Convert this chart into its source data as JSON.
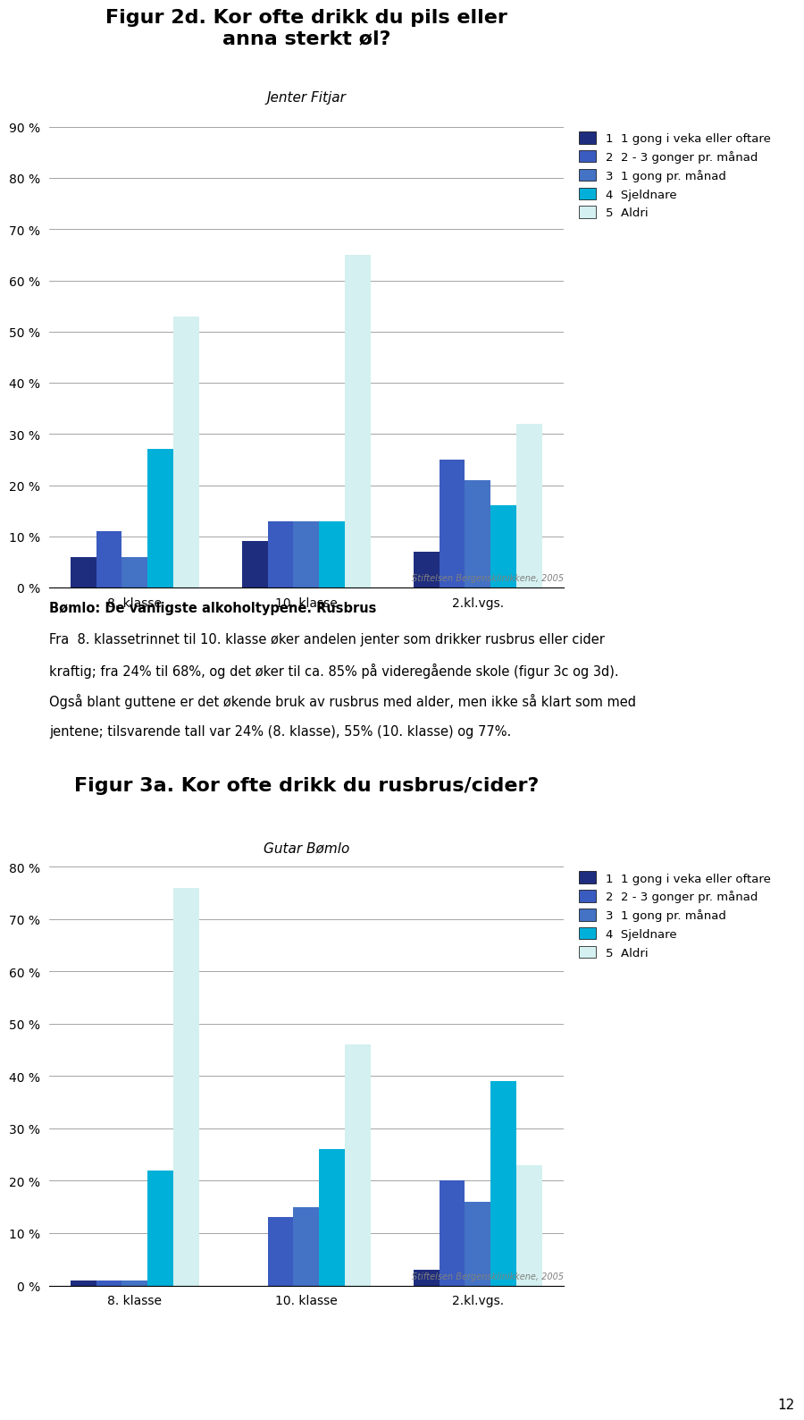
{
  "chart1": {
    "title": "Figur 2d. Kor ofte drikk du pils eller\nanna sterkt øl?",
    "subtitle": "Jenter Fitjar",
    "categories": [
      "8. klasse",
      "10. klasse",
      "2.kl.vgs."
    ],
    "series": [
      {
        "label": "1  1 gong i veka eller oftare",
        "values": [
          6,
          9,
          7
        ],
        "color": "#1f2d7e"
      },
      {
        "label": "2  2 - 3 gonger pr. månad",
        "values": [
          11,
          13,
          25
        ],
        "color": "#3a5bbf"
      },
      {
        "label": "3  1 gong pr. månad",
        "values": [
          6,
          13,
          21
        ],
        "color": "#4472c4"
      },
      {
        "label": "4  Sjeldnare",
        "values": [
          27,
          13,
          16
        ],
        "color": "#00b0d8"
      },
      {
        "label": "5  Aldri",
        "values": [
          53,
          65,
          32
        ],
        "color": "#d4f0f0"
      }
    ],
    "ylim": [
      0,
      90
    ],
    "yticks": [
      0,
      10,
      20,
      30,
      40,
      50,
      60,
      70,
      80,
      90
    ],
    "footer": "Stiftelsen Bergensklinikkene, 2005"
  },
  "chart2": {
    "title": "Figur 3a. Kor ofte drikk du rusbrus/cider?",
    "subtitle": "Gutar Bømlo",
    "categories": [
      "8. klasse",
      "10. klasse",
      "2.kl.vgs."
    ],
    "series": [
      {
        "label": "1  1 gong i veka eller oftare",
        "values": [
          1,
          0,
          3
        ],
        "color": "#1f2d7e"
      },
      {
        "label": "2  2 - 3 gonger pr. månad",
        "values": [
          1,
          13,
          20
        ],
        "color": "#3a5bbf"
      },
      {
        "label": "3  1 gong pr. månad",
        "values": [
          1,
          15,
          16
        ],
        "color": "#4472c4"
      },
      {
        "label": "4  Sjeldnare",
        "values": [
          22,
          26,
          39
        ],
        "color": "#00b0d8"
      },
      {
        "label": "5  Aldri",
        "values": [
          76,
          46,
          23
        ],
        "color": "#d4f0f0"
      }
    ],
    "ylim": [
      0,
      80
    ],
    "yticks": [
      0,
      10,
      20,
      30,
      40,
      50,
      60,
      70,
      80
    ],
    "footer": "Stiftelsen Bergensklinikkene, 2005"
  },
  "body_text": [
    "Bømlo: De vanligste alkoholtypene. Rusbrus",
    "Fra  8. klassetrinnet til 10. klasse øker andelen jenter som drikker rusbrus eller cider",
    "kraftig; fra 24% til 68%, og det øker til ca. 85% på videregående skole (figur 3c og 3d).",
    "Også blant guttene er det økende bruk av rusbrus med alder, men ikke så klart som med",
    "jentene; tilsvarende tall var 24% (8. klasse), 55% (10. klasse) og 77%."
  ],
  "page_number": "12",
  "bar_width": 0.15,
  "legend_colors": [
    "#1f2d7e",
    "#3a5bbf",
    "#4472c4",
    "#00b0d8",
    "#d4f0f0"
  ],
  "legend_labels": [
    "1  1 gong i veka eller oftare",
    "2  2 - 3 gonger pr. månad",
    "3  1 gong pr. månad",
    "4  Sjeldnare",
    "5  Aldri"
  ],
  "background_color": "#ffffff"
}
